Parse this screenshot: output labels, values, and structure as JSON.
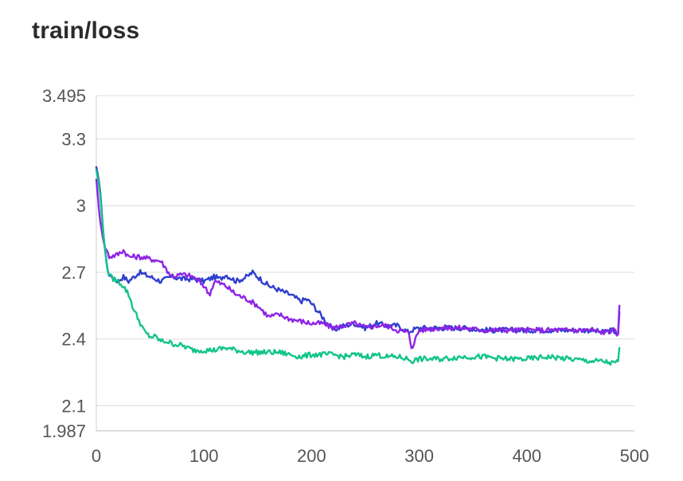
{
  "chart_data": {
    "type": "line",
    "title": "train/loss",
    "xlabel": "",
    "ylabel": "",
    "xlim": [
      0,
      500
    ],
    "ylim": [
      1.987,
      3.495
    ],
    "xticks": [
      0,
      100,
      200,
      300,
      400,
      500
    ],
    "yticks": [
      1.987,
      2.1,
      2.4,
      2.7,
      3,
      3.3,
      3.495
    ],
    "xtick_labels": [
      "0",
      "100",
      "200",
      "300",
      "400",
      "500"
    ],
    "ytick_labels": [
      "1.987",
      "2.1",
      "2.4",
      "2.7",
      "3",
      "3.3",
      "3.495"
    ],
    "grid": true,
    "legend": "none",
    "series": [
      {
        "color": "#2f3fce",
        "x": [
          0,
          3,
          7,
          10,
          13,
          16,
          20,
          25,
          30,
          35,
          40,
          50,
          60,
          70,
          80,
          90,
          100,
          110,
          115,
          120,
          130,
          140,
          145,
          150,
          160,
          170,
          180,
          190,
          195,
          200,
          210,
          220,
          230,
          240,
          250,
          260,
          270,
          280,
          290,
          293,
          300,
          320,
          340,
          360,
          380,
          400,
          420,
          440,
          460,
          470,
          480,
          485,
          486
        ],
        "y": [
          3.17,
          3.1,
          2.85,
          2.72,
          2.68,
          2.68,
          2.66,
          2.68,
          2.66,
          2.68,
          2.7,
          2.68,
          2.66,
          2.68,
          2.67,
          2.67,
          2.66,
          2.68,
          2.67,
          2.69,
          2.66,
          2.68,
          2.7,
          2.68,
          2.64,
          2.62,
          2.6,
          2.57,
          2.58,
          2.56,
          2.5,
          2.44,
          2.46,
          2.47,
          2.45,
          2.47,
          2.46,
          2.46,
          2.43,
          2.44,
          2.45,
          2.45,
          2.45,
          2.44,
          2.44,
          2.44,
          2.44,
          2.44,
          2.44,
          2.43,
          2.44,
          2.42,
          2.52
        ]
      },
      {
        "color": "#8e24e6",
        "x": [
          0,
          3,
          7,
          12,
          20,
          25,
          30,
          40,
          50,
          60,
          70,
          80,
          90,
          100,
          105,
          110,
          120,
          130,
          140,
          150,
          160,
          170,
          180,
          190,
          200,
          210,
          220,
          230,
          240,
          250,
          260,
          270,
          280,
          290,
          293,
          300,
          320,
          340,
          360,
          380,
          400,
          420,
          440,
          460,
          470,
          480,
          485,
          486
        ],
        "y": [
          3.12,
          2.95,
          2.83,
          2.77,
          2.78,
          2.8,
          2.77,
          2.77,
          2.76,
          2.75,
          2.68,
          2.69,
          2.68,
          2.64,
          2.6,
          2.66,
          2.64,
          2.6,
          2.58,
          2.55,
          2.5,
          2.51,
          2.49,
          2.48,
          2.47,
          2.47,
          2.45,
          2.46,
          2.47,
          2.45,
          2.46,
          2.46,
          2.44,
          2.43,
          2.36,
          2.44,
          2.45,
          2.45,
          2.44,
          2.44,
          2.44,
          2.44,
          2.44,
          2.44,
          2.43,
          2.44,
          2.42,
          2.55
        ]
      },
      {
        "color": "#12c48a",
        "x": [
          0,
          3,
          7,
          10,
          13,
          16,
          20,
          25,
          30,
          35,
          40,
          45,
          50,
          55,
          60,
          65,
          70,
          80,
          90,
          100,
          110,
          120,
          130,
          140,
          150,
          160,
          170,
          180,
          190,
          200,
          210,
          220,
          230,
          240,
          250,
          260,
          270,
          280,
          290,
          293,
          300,
          320,
          340,
          360,
          380,
          400,
          420,
          440,
          460,
          470,
          480,
          485,
          486
        ],
        "y": [
          3.16,
          3.08,
          2.85,
          2.72,
          2.68,
          2.67,
          2.66,
          2.64,
          2.6,
          2.53,
          2.48,
          2.43,
          2.41,
          2.41,
          2.39,
          2.39,
          2.38,
          2.37,
          2.35,
          2.35,
          2.35,
          2.36,
          2.35,
          2.34,
          2.34,
          2.34,
          2.34,
          2.33,
          2.32,
          2.33,
          2.33,
          2.33,
          2.32,
          2.33,
          2.32,
          2.33,
          2.32,
          2.32,
          2.31,
          2.3,
          2.31,
          2.31,
          2.32,
          2.32,
          2.31,
          2.31,
          2.32,
          2.31,
          2.3,
          2.3,
          2.29,
          2.3,
          2.36
        ]
      }
    ]
  }
}
